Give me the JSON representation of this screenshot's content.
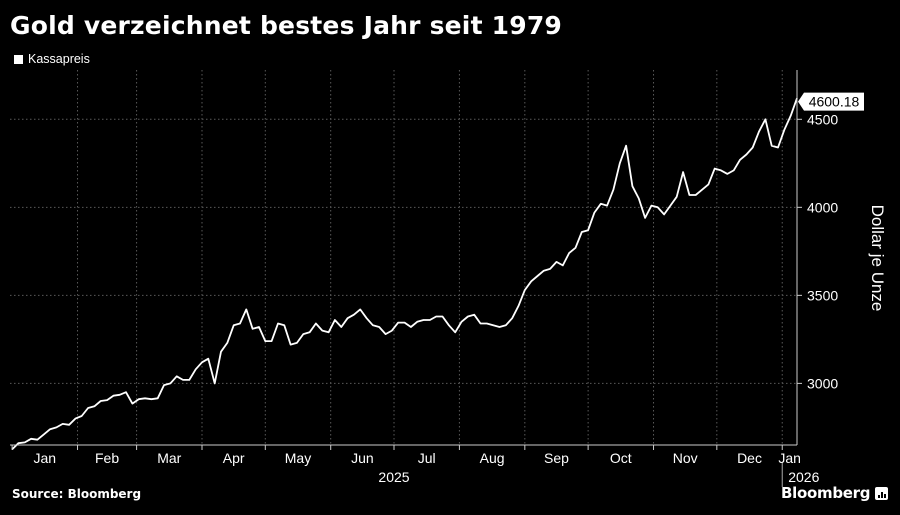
{
  "title": "Gold verzeichnet bestes Jahr seit 1979",
  "legend_label": "Kassapreis",
  "source": "Source: Bloomberg",
  "brand": "Bloomberg",
  "colors": {
    "background": "#000000",
    "line": "#ffffff",
    "grid": "#5a5a5a",
    "text": "#ffffff"
  },
  "chart_data": {
    "type": "line",
    "title": "Gold verzeichnet bestes Jahr seit 1979",
    "ylabel": "Dollar je Unze",
    "ylim": [
      2650,
      4780
    ],
    "yticks": [
      3000,
      3500,
      4000,
      4500
    ],
    "grid": true,
    "legend_position": "top-left",
    "last_value_label": "4600.18",
    "xlim": [
      "2024-12-31",
      "2026-01-08"
    ],
    "month_ticks": [
      {
        "label": "Jan",
        "date": "2025-01-01"
      },
      {
        "label": "Feb",
        "date": "2025-02-01"
      },
      {
        "label": "Mar",
        "date": "2025-03-01"
      },
      {
        "label": "Apr",
        "date": "2025-04-01"
      },
      {
        "label": "May",
        "date": "2025-05-01"
      },
      {
        "label": "Jun",
        "date": "2025-06-01"
      },
      {
        "label": "Jul",
        "date": "2025-07-01"
      },
      {
        "label": "Aug",
        "date": "2025-08-01"
      },
      {
        "label": "Sep",
        "date": "2025-09-01"
      },
      {
        "label": "Oct",
        "date": "2025-10-01"
      },
      {
        "label": "Nov",
        "date": "2025-11-01"
      },
      {
        "label": "Dec",
        "date": "2025-12-01"
      },
      {
        "label": "Jan",
        "date": "2026-01-01"
      }
    ],
    "year_labels": [
      {
        "label": "2025",
        "date": "2025-07-01"
      },
      {
        "label": "2026",
        "date": "2026-01-01"
      }
    ],
    "series": [
      {
        "name": "Kassapreis",
        "x": [
          "2025-01-01",
          "2025-01-04",
          "2025-01-07",
          "2025-01-10",
          "2025-01-13",
          "2025-01-16",
          "2025-01-19",
          "2025-01-22",
          "2025-01-25",
          "2025-01-28",
          "2025-01-31",
          "2025-02-03",
          "2025-02-06",
          "2025-02-09",
          "2025-02-12",
          "2025-02-15",
          "2025-02-18",
          "2025-02-21",
          "2025-02-24",
          "2025-02-27",
          "2025-03-02",
          "2025-03-05",
          "2025-03-08",
          "2025-03-11",
          "2025-03-14",
          "2025-03-17",
          "2025-03-20",
          "2025-03-23",
          "2025-03-26",
          "2025-03-29",
          "2025-04-01",
          "2025-04-04",
          "2025-04-07",
          "2025-04-10",
          "2025-04-13",
          "2025-04-16",
          "2025-04-19",
          "2025-04-22",
          "2025-04-25",
          "2025-04-28",
          "2025-05-01",
          "2025-05-04",
          "2025-05-07",
          "2025-05-10",
          "2025-05-13",
          "2025-05-16",
          "2025-05-19",
          "2025-05-22",
          "2025-05-25",
          "2025-05-28",
          "2025-05-31",
          "2025-06-03",
          "2025-06-06",
          "2025-06-09",
          "2025-06-12",
          "2025-06-15",
          "2025-06-18",
          "2025-06-21",
          "2025-06-24",
          "2025-06-27",
          "2025-06-30",
          "2025-07-03",
          "2025-07-06",
          "2025-07-09",
          "2025-07-12",
          "2025-07-15",
          "2025-07-18",
          "2025-07-21",
          "2025-07-24",
          "2025-07-27",
          "2025-07-30",
          "2025-08-02",
          "2025-08-05",
          "2025-08-08",
          "2025-08-11",
          "2025-08-14",
          "2025-08-17",
          "2025-08-20",
          "2025-08-23",
          "2025-08-26",
          "2025-08-29",
          "2025-09-01",
          "2025-09-04",
          "2025-09-07",
          "2025-09-10",
          "2025-09-13",
          "2025-09-16",
          "2025-09-19",
          "2025-09-22",
          "2025-09-25",
          "2025-09-28",
          "2025-10-01",
          "2025-10-04",
          "2025-10-07",
          "2025-10-10",
          "2025-10-13",
          "2025-10-16",
          "2025-10-19",
          "2025-10-22",
          "2025-10-25",
          "2025-10-28",
          "2025-10-31",
          "2025-11-03",
          "2025-11-06",
          "2025-11-09",
          "2025-11-12",
          "2025-11-15",
          "2025-11-18",
          "2025-11-21",
          "2025-11-24",
          "2025-11-27",
          "2025-11-30",
          "2025-12-03",
          "2025-12-06",
          "2025-12-09",
          "2025-12-12",
          "2025-12-15",
          "2025-12-18",
          "2025-12-21",
          "2025-12-24",
          "2025-12-27",
          "2025-12-30",
          "2026-01-02",
          "2026-01-05",
          "2026-01-08"
        ],
        "values": [
          2625,
          2660,
          2665,
          2685,
          2680,
          2710,
          2740,
          2750,
          2770,
          2765,
          2800,
          2815,
          2860,
          2870,
          2900,
          2905,
          2930,
          2935,
          2950,
          2885,
          2910,
          2915,
          2910,
          2915,
          2990,
          3000,
          3040,
          3020,
          3020,
          3080,
          3120,
          3140,
          3000,
          3180,
          3230,
          3330,
          3340,
          3420,
          3310,
          3320,
          3240,
          3240,
          3340,
          3330,
          3220,
          3230,
          3280,
          3290,
          3340,
          3300,
          3290,
          3360,
          3320,
          3370,
          3390,
          3420,
          3370,
          3330,
          3320,
          3280,
          3300,
          3345,
          3345,
          3320,
          3350,
          3360,
          3360,
          3380,
          3380,
          3330,
          3290,
          3350,
          3380,
          3390,
          3340,
          3340,
          3330,
          3320,
          3330,
          3370,
          3440,
          3530,
          3580,
          3610,
          3640,
          3650,
          3690,
          3670,
          3740,
          3770,
          3860,
          3870,
          3970,
          4020,
          4010,
          4100,
          4250,
          4350,
          4120,
          4050,
          3940,
          4010,
          4000,
          3960,
          4010,
          4060,
          4200,
          4070,
          4070,
          4100,
          4130,
          4220,
          4210,
          4190,
          4210,
          4270,
          4300,
          4340,
          4430,
          4500,
          4350,
          4340,
          4440,
          4520,
          4620
        ]
      }
    ]
  }
}
